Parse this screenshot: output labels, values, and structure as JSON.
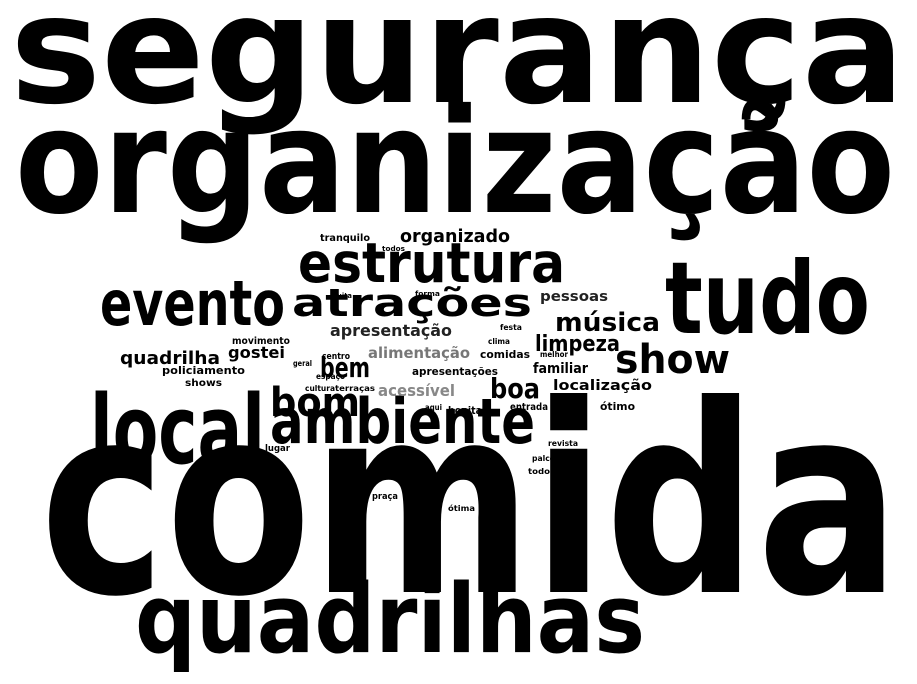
{
  "words": [
    "segurança",
    "organização",
    "comida",
    "quadrilhas",
    "local",
    "tudo",
    "ambiente",
    "evento",
    "estrutura",
    "atrações",
    "bom",
    "show",
    "boa",
    "música",
    "limpeza",
    "bem",
    "organizado",
    "apresentação",
    "quadrilha",
    "gostei",
    "pessoas",
    "alimentação",
    "familiar",
    "comidas",
    "apresentações",
    "localização",
    "acessível",
    "policiamento",
    "shows",
    "movimento",
    "centro",
    "geral",
    "cultura",
    "terraças",
    "bonita",
    "aqui",
    "entrada",
    "ótimo",
    "tranquilo",
    "todos",
    "forma",
    "muita",
    "festa",
    "clima",
    "melhor",
    "espaço",
    "lugar",
    "revista",
    "palco",
    "todo",
    "praça",
    "ótima"
  ]
}
